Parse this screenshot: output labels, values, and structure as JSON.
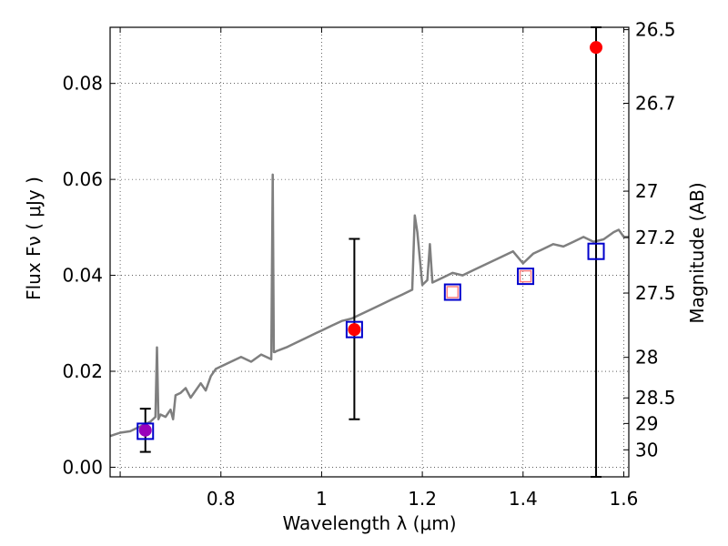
{
  "chart_data": {
    "type": "scatter",
    "xlabel": "Wavelength  λ (μm)",
    "ylabel": "Flux  Fν  ( μJy )",
    "y2label": "Magnitude (AB)",
    "xlim": [
      0.58,
      1.61
    ],
    "ylim": [
      -0.002,
      0.0917
    ],
    "grid": true,
    "x_ticks": [
      {
        "value": 0.6,
        "label": ""
      },
      {
        "value": 0.8,
        "label": "0.8"
      },
      {
        "value": 1.0,
        "label": "1"
      },
      {
        "value": 1.2,
        "label": "1.2"
      },
      {
        "value": 1.4,
        "label": "1.4"
      },
      {
        "value": 1.6,
        "label": "1.6"
      }
    ],
    "y_ticks": [
      {
        "value": 0.0,
        "label": "0.00"
      },
      {
        "value": 0.02,
        "label": "0.02"
      },
      {
        "value": 0.04,
        "label": "0.04"
      },
      {
        "value": 0.06,
        "label": "0.06"
      },
      {
        "value": 0.08,
        "label": "0.08"
      }
    ],
    "magnitude_ticks": [
      {
        "value": 26.5,
        "label": "26.5"
      },
      {
        "value": 26.7,
        "label": "26.7"
      },
      {
        "value": 27,
        "label": "27"
      },
      {
        "value": 27.2,
        "label": "27.2"
      },
      {
        "value": 27.5,
        "label": "27.5"
      },
      {
        "value": 28,
        "label": "28"
      },
      {
        "value": 28.5,
        "label": "28.5"
      },
      {
        "value": 29,
        "label": "29"
      },
      {
        "value": 30,
        "label": "30"
      }
    ],
    "template_spectrum": {
      "color": "#7f7f7f",
      "x": [
        0.58,
        0.6,
        0.62,
        0.64,
        0.66,
        0.67,
        0.673,
        0.676,
        0.68,
        0.69,
        0.7,
        0.705,
        0.71,
        0.72,
        0.73,
        0.74,
        0.76,
        0.77,
        0.78,
        0.79,
        0.8,
        0.82,
        0.84,
        0.86,
        0.88,
        0.9,
        0.903,
        0.905,
        0.907,
        0.91,
        0.93,
        0.95,
        0.97,
        0.99,
        1.0,
        1.02,
        1.04,
        1.06,
        1.08,
        1.1,
        1.12,
        1.14,
        1.16,
        1.18,
        1.185,
        1.19,
        1.2,
        1.21,
        1.215,
        1.22,
        1.24,
        1.26,
        1.28,
        1.3,
        1.32,
        1.34,
        1.36,
        1.38,
        1.4,
        1.42,
        1.44,
        1.46,
        1.48,
        1.5,
        1.52,
        1.54,
        1.56,
        1.58,
        1.59,
        1.6,
        1.61
      ],
      "values": [
        0.0065,
        0.0072,
        0.0075,
        0.0085,
        0.0095,
        0.0105,
        0.025,
        0.01,
        0.011,
        0.0105,
        0.012,
        0.01,
        0.015,
        0.0155,
        0.0165,
        0.0145,
        0.0175,
        0.016,
        0.019,
        0.0205,
        0.021,
        0.022,
        0.023,
        0.022,
        0.0235,
        0.0225,
        0.061,
        0.024,
        0.024,
        0.0242,
        0.025,
        0.026,
        0.027,
        0.028,
        0.0285,
        0.0295,
        0.0305,
        0.031,
        0.032,
        0.033,
        0.034,
        0.035,
        0.036,
        0.037,
        0.0525,
        0.049,
        0.038,
        0.039,
        0.0465,
        0.0385,
        0.0395,
        0.0405,
        0.04,
        0.041,
        0.042,
        0.043,
        0.044,
        0.045,
        0.0425,
        0.0445,
        0.0455,
        0.0465,
        0.046,
        0.047,
        0.048,
        0.047,
        0.0475,
        0.049,
        0.0495,
        0.048,
        0.048
      ]
    },
    "model_points": {
      "color": "#0000cc",
      "marker": "open-square",
      "x": [
        0.65,
        1.065,
        1.26,
        1.405,
        1.545
      ],
      "values": [
        0.0075,
        0.0287,
        0.0365,
        0.0398,
        0.045
      ]
    },
    "observed_points": {
      "color": "#ff0000",
      "marker": "filled-circle",
      "points": [
        {
          "x": 0.65,
          "value": 0.0077,
          "yerr_low": 0.0032,
          "yerr_high": 0.0122,
          "color": "#9900bb"
        },
        {
          "x": 1.065,
          "value": 0.0287,
          "yerr_low": 0.01,
          "yerr_high": 0.0476,
          "color": "#ff0000"
        },
        {
          "x": 1.26,
          "value": 0.0365,
          "yerr_low": null,
          "yerr_high": null,
          "color": "#ff8080",
          "marker": "small-open-square"
        },
        {
          "x": 1.405,
          "value": 0.0398,
          "yerr_low": null,
          "yerr_high": null,
          "color": "#ff8080",
          "marker": "small-open-square"
        },
        {
          "x": 1.545,
          "value": 0.0875,
          "yerr_low": -0.002,
          "yerr_high": 0.0917,
          "color": "#ff0000"
        }
      ]
    }
  }
}
